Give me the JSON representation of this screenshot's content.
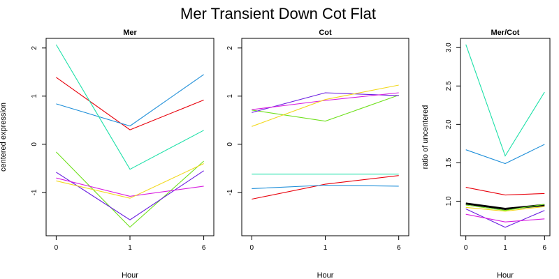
{
  "title": "Mer Transient Down Cot Flat",
  "colors": {
    "red": "#e8000b",
    "blue": "#1f8fd9",
    "teal": "#1de0a8",
    "green": "#6fe01d",
    "purple": "#6a1de0",
    "magenta": "#d81de0",
    "yellow": "#f2d81d",
    "cyan": "#2de0d0",
    "black": "#000000"
  },
  "chart_data": [
    {
      "type": "line",
      "title": "Mer",
      "xlabel": "Hour",
      "ylabel": "centered expression",
      "x": [
        "0",
        "1",
        "6"
      ],
      "ylim": [
        -1.9,
        2.2
      ],
      "yticks": [
        "-1",
        "0",
        "1",
        "2"
      ],
      "ytick_values": [
        -1,
        0,
        1,
        2
      ],
      "series": [
        {
          "color": "red",
          "values": [
            1.39,
            0.3,
            0.92
          ]
        },
        {
          "color": "blue",
          "values": [
            0.84,
            0.38,
            1.45
          ]
        },
        {
          "color": "teal",
          "values": [
            2.07,
            -0.52,
            0.29
          ]
        },
        {
          "color": "green",
          "values": [
            -0.16,
            -1.72,
            -0.35
          ]
        },
        {
          "color": "purple",
          "values": [
            -0.58,
            -1.57,
            -0.55
          ]
        },
        {
          "color": "magenta",
          "values": [
            -0.7,
            -1.08,
            -0.87
          ]
        },
        {
          "color": "yellow",
          "values": [
            -0.76,
            -1.12,
            -0.4
          ]
        }
      ]
    },
    {
      "type": "line",
      "title": "Cot",
      "xlabel": "Hour",
      "ylabel": "",
      "x": [
        "0",
        "1",
        "6"
      ],
      "ylim": [
        -1.9,
        2.2
      ],
      "yticks": [
        "-1",
        "0",
        "1",
        "2"
      ],
      "ytick_values": [
        -1,
        0,
        1,
        2
      ],
      "series": [
        {
          "color": "red",
          "values": [
            -1.14,
            -0.83,
            -0.65
          ]
        },
        {
          "color": "blue",
          "values": [
            -0.92,
            -0.85,
            -0.87
          ]
        },
        {
          "color": "teal",
          "values": [
            -0.62,
            -0.62,
            -0.62
          ]
        },
        {
          "color": "green",
          "values": [
            0.71,
            0.48,
            1.02
          ]
        },
        {
          "color": "purple",
          "values": [
            0.66,
            1.07,
            1.01
          ]
        },
        {
          "color": "magenta",
          "values": [
            0.72,
            0.91,
            1.07
          ]
        },
        {
          "color": "yellow",
          "values": [
            0.37,
            0.93,
            1.23
          ]
        }
      ]
    },
    {
      "type": "line",
      "title": "Mer/Cot",
      "xlabel": "Hour",
      "ylabel": "ratio of uncentered",
      "x": [
        "0",
        "1",
        "6"
      ],
      "ylim": [
        0.55,
        3.12
      ],
      "yticks": [
        "1.0",
        "1.5",
        "2.0",
        "2.5",
        "3.0"
      ],
      "ytick_values": [
        1.0,
        1.5,
        2.0,
        2.5,
        3.0
      ],
      "series": [
        {
          "color": "teal",
          "values": [
            3.04,
            1.59,
            2.42
          ]
        },
        {
          "color": "blue",
          "values": [
            1.67,
            1.49,
            1.74
          ]
        },
        {
          "color": "red",
          "values": [
            1.18,
            1.08,
            1.1
          ]
        },
        {
          "color": "black",
          "values": [
            0.97,
            0.9,
            0.95
          ],
          "thick": true
        },
        {
          "color": "yellow",
          "values": [
            0.92,
            0.87,
            0.93
          ]
        },
        {
          "color": "green",
          "values": [
            0.95,
            0.88,
            0.96
          ]
        },
        {
          "color": "purple",
          "values": [
            0.9,
            0.66,
            0.88
          ]
        },
        {
          "color": "magenta",
          "values": [
            0.83,
            0.73,
            0.77
          ]
        }
      ]
    }
  ]
}
